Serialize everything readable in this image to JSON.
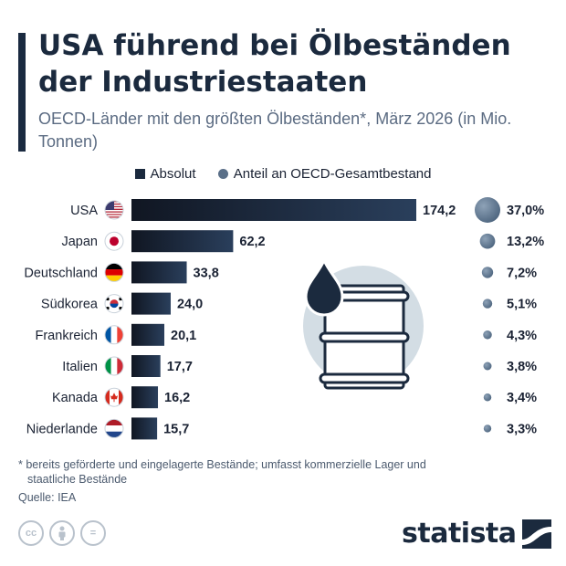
{
  "header": {
    "title": "USA führend bei Ölbeständen der Industriestaaten",
    "subtitle": "OECD-Länder mit den größten Ölbeständen*, März 2026 (in Mio. Tonnen)"
  },
  "legend": {
    "absolute_label": "Absolut",
    "share_label": "Anteil an OECD-Gesamtbestand"
  },
  "colors": {
    "bar_dark": "#101622",
    "bar_light": "#2a3f5c",
    "dot": "#56708b",
    "illustration_bg": "#d3dde4"
  },
  "chart_data": {
    "type": "bar",
    "orientation": "horizontal",
    "categories": [
      "USA",
      "Japan",
      "Deutschland",
      "Südkorea",
      "Frankreich",
      "Italien",
      "Kanada",
      "Niederlande"
    ],
    "value_labels": [
      "174,2",
      "62,2",
      "33,8",
      "24,0",
      "20,1",
      "17,7",
      "16,2",
      "15,7"
    ],
    "share_labels": [
      "37,0%",
      "13,2%",
      "7,2%",
      "5,1%",
      "4,3%",
      "3,8%",
      "3,4%",
      "3,3%"
    ],
    "series": [
      {
        "name": "Absolut",
        "values": [
          174.2,
          62.2,
          33.8,
          24.0,
          20.1,
          17.7,
          16.2,
          15.7
        ]
      },
      {
        "name": "Anteil an OECD-Gesamtbestand",
        "values": [
          37.0,
          13.2,
          7.2,
          5.1,
          4.3,
          3.8,
          3.4,
          3.3
        ]
      }
    ],
    "flags": [
      "flag-usa-icon",
      "flag-japan-icon",
      "flag-germany-icon",
      "flag-south-korea-icon",
      "flag-france-icon",
      "flag-italy-icon",
      "flag-canada-icon",
      "flag-netherlands-icon"
    ],
    "grid": false,
    "legend_position": "top-center"
  },
  "footer": {
    "footnote": "* bereits geförderte und eingelagerte Bestände; umfasst kommerzielle Lager und staatliche Bestände",
    "source": "Quelle: IEA",
    "logo": "statista",
    "license_icons": [
      "cc-icon",
      "person-icon",
      "equals-icon"
    ],
    "license_labels": [
      "cc",
      "",
      "="
    ]
  }
}
